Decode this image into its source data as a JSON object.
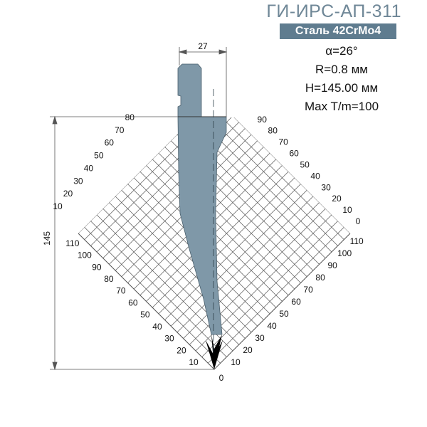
{
  "title": "ГИ-ИРС-АП-311",
  "material_badge": "Сталь 42CrMo4",
  "specs": [
    "α=26°",
    "R=0.8 мм",
    "H=145.00 мм",
    "Max T/m=100"
  ],
  "dimensions": {
    "width": "27",
    "height": "145"
  },
  "colors": {
    "tool": "#7f98a8",
    "tip": "#000000",
    "title": "#6f8797",
    "badge": "#5f7c8f",
    "grid": "#555555"
  },
  "axes": {
    "left_upper": [
      "10",
      "20",
      "30",
      "40",
      "50",
      "60",
      "70",
      "80"
    ],
    "right_upper": [
      "0",
      "10",
      "20",
      "30",
      "40",
      "50",
      "60",
      "70",
      "80",
      "90"
    ],
    "left_lower": [
      "10",
      "20",
      "30",
      "40",
      "50",
      "60",
      "70",
      "80",
      "90",
      "100",
      "110"
    ],
    "right_lower": [
      "0",
      "10",
      "20",
      "30",
      "40",
      "50",
      "60",
      "70",
      "80",
      "90",
      "100",
      "110"
    ]
  }
}
